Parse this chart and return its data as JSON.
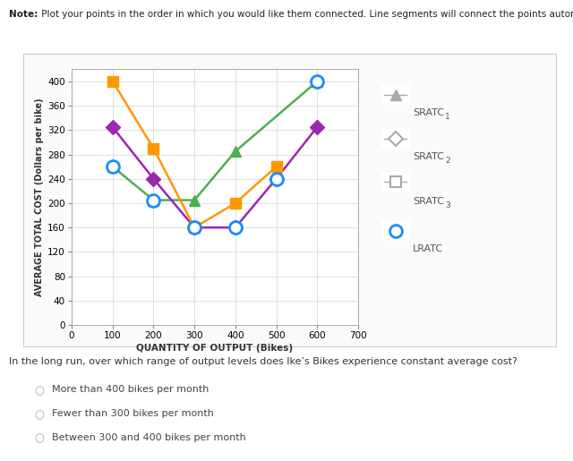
{
  "sratc1_x": [
    100,
    200,
    300,
    400,
    600
  ],
  "sratc1_y": [
    260,
    205,
    205,
    285,
    400
  ],
  "sratc1_color": "#4caf50",
  "sratc2_x": [
    100,
    200,
    300,
    400,
    500,
    600
  ],
  "sratc2_y": [
    325,
    240,
    160,
    160,
    240,
    325
  ],
  "sratc2_color": "#9c27b0",
  "sratc3_x": [
    100,
    200,
    300,
    400,
    500
  ],
  "sratc3_y": [
    400,
    290,
    160,
    200,
    260
  ],
  "sratc3_color": "#ff9800",
  "lratc_x": [
    100,
    200,
    300,
    400,
    500,
    600
  ],
  "lratc_y": [
    260,
    205,
    160,
    160,
    240,
    400
  ],
  "lratc_color": "#1a8cff",
  "xlim": [
    0,
    700
  ],
  "ylim": [
    0,
    420
  ],
  "xticks": [
    0,
    100,
    200,
    300,
    400,
    500,
    600,
    700
  ],
  "yticks": [
    0,
    40,
    80,
    120,
    160,
    200,
    240,
    280,
    320,
    360,
    400
  ],
  "xlabel": "QUANTITY OF OUTPUT (Bikes)",
  "ylabel": "AVERAGE TOTAL COST (Dollars per bike)",
  "note_bold": "Note:",
  "note_rest": " Plot your points in the order in which you would like them connected. Line segments will connect the points automatically.",
  "question": "In the long run, over which range of output levels does Ike’s Bikes experience constant average cost?",
  "options": [
    "More than 400 bikes per month",
    "Fewer than 300 bikes per month",
    "Between 300 and 400 bikes per month"
  ],
  "bg_color": "#ffffff",
  "grid_color": "#e0e0e0",
  "legend_gray": "#aaaaaa",
  "panel_border": "#cccccc",
  "marker_size": 9,
  "linewidth": 1.8
}
